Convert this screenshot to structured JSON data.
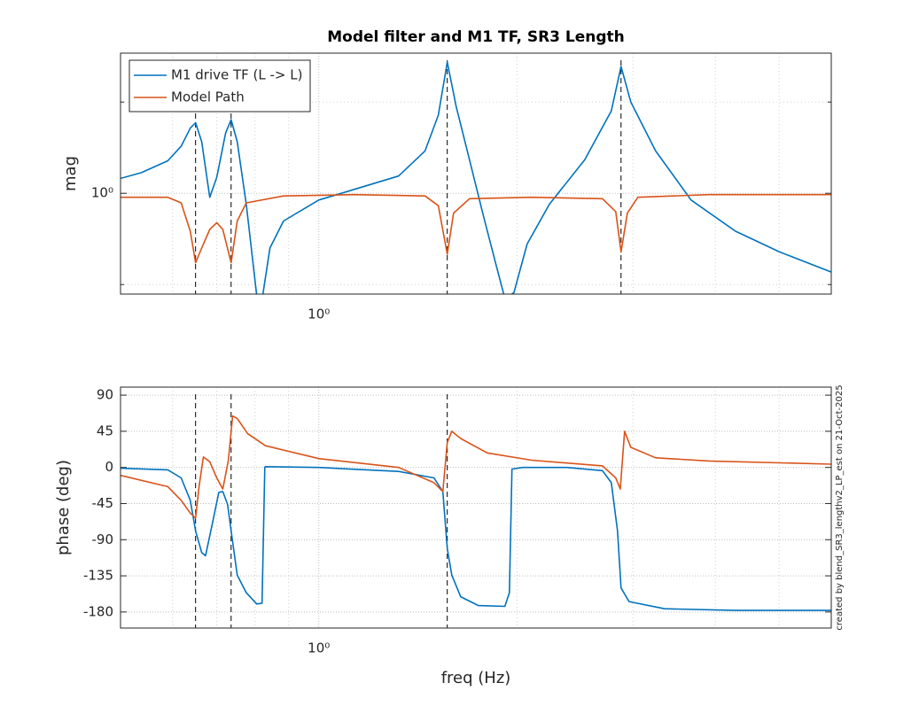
{
  "chart_data": [
    {
      "type": "line",
      "title": "Model filter and M1 TF, SR3 Length",
      "ylabel": "mag",
      "xlog": true,
      "ylog": true,
      "grid": true,
      "legend": "upper left",
      "xlim": [
        0.5,
        6
      ],
      "xticks": [
        {
          "value": 1,
          "label": "10⁰"
        }
      ],
      "xminor": [
        0.6,
        0.7,
        0.8,
        0.9,
        2,
        3,
        4,
        5
      ],
      "ylim": [
        0.465,
        2.9
      ],
      "yticks": [
        {
          "value": 1,
          "label": "10⁰"
        }
      ],
      "yminor": [
        0.5,
        2
      ],
      "vlines": [
        0.65,
        0.736,
        1.567,
        2.877
      ],
      "series": [
        {
          "name": "M1 drive TF (L -> L)",
          "color": "#0072bd",
          "x": [
            0.5,
            0.538,
            0.59,
            0.618,
            0.638,
            0.65,
            0.664,
            0.683,
            0.7,
            0.722,
            0.736,
            0.752,
            0.776,
            0.805,
            0.818,
            0.843,
            0.884,
            1.0,
            1.132,
            1.322,
            1.45,
            1.519,
            1.567,
            1.617,
            1.694,
            1.774,
            1.859,
            1.917,
            1.978,
            2.072,
            2.239,
            2.534,
            2.781,
            2.877,
            2.977,
            3.247,
            3.675,
            4.292,
            5.012,
            6.0
          ],
          "values": [
            1.12,
            1.17,
            1.28,
            1.43,
            1.64,
            1.71,
            1.48,
            0.97,
            1.13,
            1.58,
            1.75,
            1.48,
            0.92,
            0.46,
            0.43,
            0.66,
            0.81,
            0.95,
            1.03,
            1.14,
            1.38,
            1.81,
            2.71,
            1.93,
            1.29,
            0.86,
            0.58,
            0.45,
            0.47,
            0.68,
            0.92,
            1.29,
            1.87,
            2.62,
            2.0,
            1.38,
            0.95,
            0.75,
            0.64,
            0.55
          ]
        },
        {
          "name": "Model Path",
          "color": "#d95319",
          "x": [
            0.5,
            0.59,
            0.618,
            0.638,
            0.65,
            0.664,
            0.683,
            0.7,
            0.715,
            0.736,
            0.752,
            0.776,
            0.884,
            1.132,
            1.45,
            1.519,
            1.567,
            1.602,
            1.694,
            2.104,
            2.696,
            2.824,
            2.877,
            2.941,
            3.052,
            3.909,
            6.0
          ],
          "values": [
            0.97,
            0.97,
            0.93,
            0.75,
            0.59,
            0.66,
            0.76,
            0.8,
            0.76,
            0.59,
            0.81,
            0.93,
            0.98,
            0.99,
            0.98,
            0.91,
            0.63,
            0.86,
            0.96,
            0.97,
            0.96,
            0.87,
            0.64,
            0.86,
            0.97,
            0.99,
            0.99
          ]
        }
      ]
    },
    {
      "type": "line",
      "xlabel": "freq (Hz)",
      "ylabel": "phase (deg)",
      "note": "created by blend_SR3_lengthv2_LP_est on 21-Oct-2025",
      "xlog": true,
      "ylog": false,
      "grid": true,
      "xlim": [
        0.5,
        6
      ],
      "xticks": [
        {
          "value": 1,
          "label": "10⁰"
        }
      ],
      "xminor": [
        0.6,
        0.7,
        0.8,
        0.9,
        2,
        3,
        4,
        5
      ],
      "ylim": [
        -200,
        100
      ],
      "yticks": [
        90,
        45,
        0,
        -45,
        -90,
        -135,
        -180
      ],
      "vlines": [
        0.65,
        0.736,
        1.567
      ],
      "series": [
        {
          "color": "#0072bd",
          "x": [
            0.5,
            0.59,
            0.618,
            0.638,
            0.65,
            0.664,
            0.673,
            0.69,
            0.705,
            0.715,
            0.727,
            0.736,
            0.752,
            0.776,
            0.805,
            0.82,
            0.828,
            0.83,
            1.0,
            1.322,
            1.496,
            1.543,
            1.567,
            1.592,
            1.642,
            1.747,
            1.917,
            1.947,
            1.965,
            2.04,
            2.381,
            2.696,
            2.781,
            2.842,
            2.877,
            2.959,
            3.349,
            4.292,
            6.0
          ],
          "values": [
            -1,
            -3,
            -13,
            -41,
            -79,
            -106,
            -110,
            -68,
            -31,
            -30,
            -46,
            -79,
            -134,
            -156,
            -170,
            -169,
            0,
            1,
            0,
            -5,
            -13,
            -30,
            -101,
            -134,
            -161,
            -172,
            -173,
            -156,
            -2,
            0,
            0,
            -4,
            -19,
            -79,
            -150,
            -167,
            -176,
            -178,
            -178
          ]
        },
        {
          "color": "#d95319",
          "x": [
            0.5,
            0.59,
            0.618,
            0.638,
            0.65,
            0.658,
            0.668,
            0.683,
            0.7,
            0.715,
            0.729,
            0.74,
            0.752,
            0.78,
            0.83,
            1.0,
            1.322,
            1.496,
            1.543,
            1.567,
            1.592,
            1.642,
            1.802,
            2.104,
            2.696,
            2.824,
            2.869,
            2.913,
            2.977,
            3.247,
            3.909,
            6.0
          ],
          "values": [
            -10,
            -24,
            -41,
            -57,
            -63,
            -24,
            13,
            7,
            -13,
            -27,
            9,
            64,
            61,
            42,
            27,
            11,
            0,
            -19,
            -30,
            31,
            45,
            36,
            18,
            9,
            2,
            -13,
            -27,
            45,
            25,
            12,
            8,
            4
          ]
        }
      ]
    }
  ]
}
